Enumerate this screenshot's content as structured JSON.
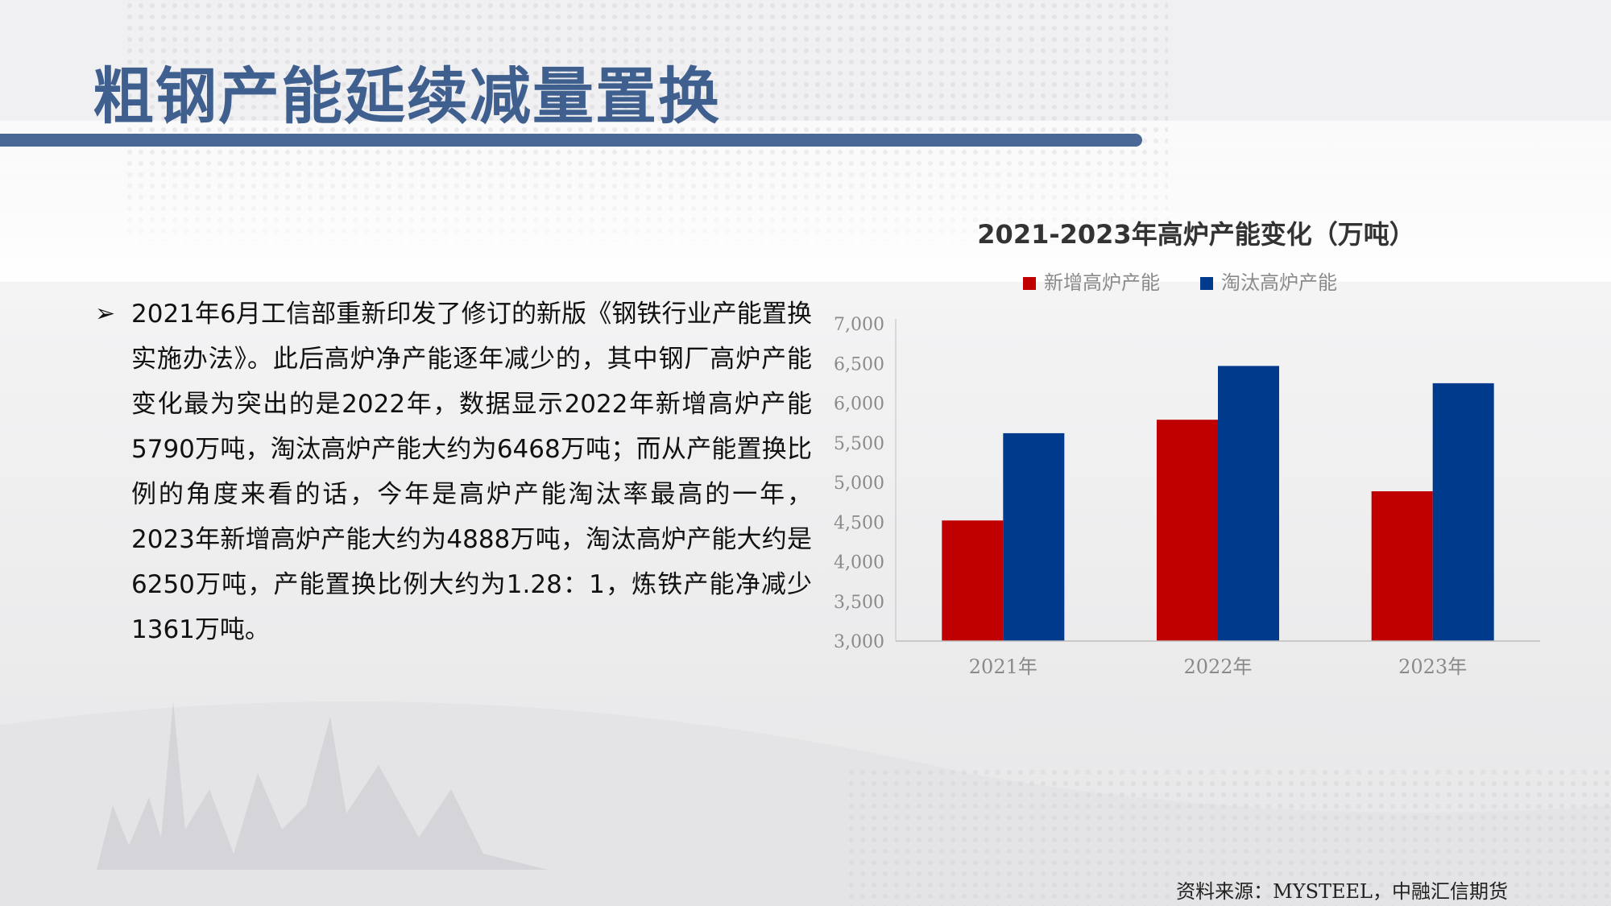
{
  "title": "粗钢产能延续减量置换",
  "bullet_glyph": "➢",
  "paragraph": "2021年6月工信部重新印发了修订的新版《钢铁行业产能置换实施办法》。此后高炉净产能逐年减少的，其中钢厂高炉产能变化最为突出的是2022年，数据显示2022年新增高炉产能5790万吨，淘汰高炉产能大约为6468万吨；而从产能置换比例的角度来看的话，今年是高炉产能淘汰率最高的一年，2023年新增高炉产能大约为4888万吨，淘汰高炉产能大约是6250万吨，产能置换比例大约为1.28：1，炼铁产能净减少1361万吨。",
  "source": "资料来源：MYSTEEL，中融汇信期货",
  "colors": {
    "title": "#3f5f8f",
    "bar_new": "#c00000",
    "bar_removed": "#003a8c"
  },
  "chart_data": {
    "type": "bar",
    "title": "2021-2023年高炉产能变化（万吨）",
    "categories": [
      "2021年",
      "2022年",
      "2023年"
    ],
    "series": [
      {
        "name": "新增高炉产能",
        "values": [
          4520,
          5790,
          4888
        ],
        "color": "#c00000"
      },
      {
        "name": "淘汰高炉产能",
        "values": [
          5620,
          6468,
          6250
        ],
        "color": "#003a8c"
      }
    ],
    "ylim": [
      3000,
      7000
    ],
    "yticks": [
      3000,
      3500,
      4000,
      4500,
      5000,
      5500,
      6000,
      6500,
      7000
    ],
    "ytick_labels": [
      "3,000",
      "3,500",
      "4,000",
      "4,500",
      "5,000",
      "5,500",
      "6,000",
      "6,500",
      "7,000"
    ],
    "legend_position": "top",
    "grid": false
  }
}
